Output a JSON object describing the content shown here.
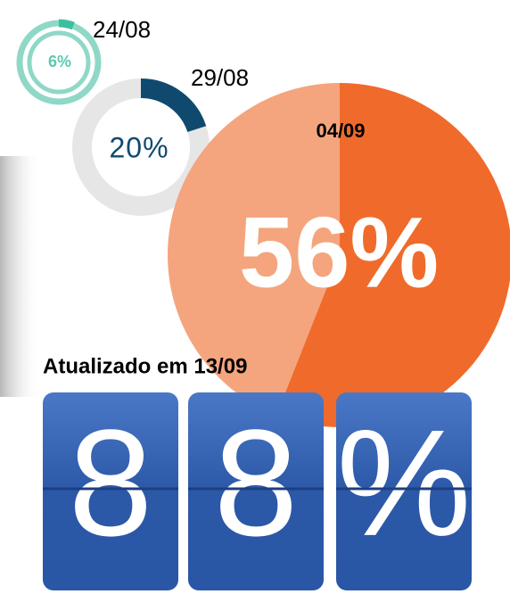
{
  "gauges": [
    {
      "date": "24/08",
      "value": 6,
      "label": "6%"
    },
    {
      "date": "29/08",
      "value": 20,
      "label": "20%"
    },
    {
      "date": "04/09",
      "value": 56,
      "label": "56%"
    }
  ],
  "updated": "Atualizado em 13/09",
  "counter": [
    "8",
    "8",
    "%"
  ]
}
